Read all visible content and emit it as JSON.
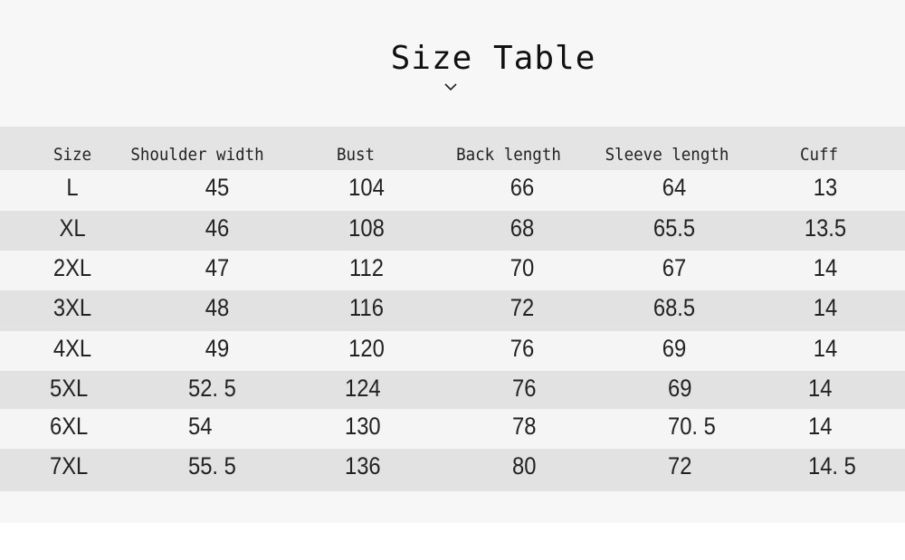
{
  "title": "Size Table",
  "icons": {
    "below_title": "chevron-down-icon"
  },
  "table": {
    "headers": [
      "Size",
      "Shoulder width",
      "Bust",
      "Back length",
      "Sleeve length",
      "Cuff"
    ],
    "rows": [
      [
        "L",
        "45",
        "104",
        "66",
        "64",
        "13"
      ],
      [
        "XL",
        "46",
        "108",
        "68",
        "65.5",
        "13.5"
      ],
      [
        "2XL",
        "47",
        "112",
        "70",
        "67",
        "14"
      ],
      [
        "3XL",
        "48",
        "116",
        "72",
        "68.5",
        "14"
      ],
      [
        "4XL",
        "49",
        "120",
        "76",
        "69",
        "14"
      ],
      [
        "5XL",
        "52. 5",
        "124",
        "76",
        "69",
        "14"
      ],
      [
        "6XL",
        "54",
        "130",
        "78",
        "70. 5",
        "14"
      ],
      [
        "7XL",
        "55. 5",
        "136",
        "80",
        "72",
        "14. 5"
      ]
    ]
  }
}
